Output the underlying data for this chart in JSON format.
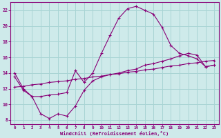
{
  "xlabel": "Windchill (Refroidissement éolien,°C)",
  "background_color": "#ceeaea",
  "grid_color": "#a8d4d4",
  "line_color": "#880077",
  "xlim": [
    -0.5,
    23.5
  ],
  "ylim": [
    7.5,
    23.0
  ],
  "xticks": [
    0,
    1,
    2,
    3,
    4,
    5,
    6,
    7,
    8,
    9,
    10,
    11,
    12,
    13,
    14,
    15,
    16,
    17,
    18,
    19,
    20,
    21,
    22,
    23
  ],
  "yticks": [
    8,
    10,
    12,
    14,
    16,
    18,
    20,
    22
  ],
  "line1_x": [
    0,
    1,
    2,
    3,
    4,
    5,
    6,
    7,
    8,
    9,
    10,
    11,
    12,
    13,
    14,
    15,
    16,
    17,
    18,
    19,
    20,
    21,
    22,
    23
  ],
  "line1_y": [
    14.0,
    12.0,
    11.0,
    11.0,
    11.2,
    11.3,
    11.5,
    14.3,
    12.8,
    14.0,
    16.5,
    18.8,
    21.0,
    22.2,
    22.5,
    22.0,
    21.5,
    19.8,
    17.5,
    16.5,
    16.2,
    15.8,
    14.8,
    15.0
  ],
  "line2_x": [
    0,
    1,
    2,
    3,
    4,
    5,
    6,
    7,
    8,
    9,
    10,
    11,
    12,
    13,
    14,
    15,
    16,
    17,
    18,
    19,
    20,
    21,
    22,
    23
  ],
  "line2_y": [
    12.2,
    12.3,
    12.5,
    12.6,
    12.8,
    12.9,
    13.0,
    13.2,
    13.3,
    13.5,
    13.6,
    13.8,
    13.9,
    14.1,
    14.2,
    14.4,
    14.5,
    14.7,
    14.9,
    15.0,
    15.2,
    15.3,
    15.5,
    15.6
  ],
  "line3_x": [
    0,
    1,
    2,
    3,
    4,
    5,
    6,
    7,
    8,
    9,
    10,
    11,
    12,
    13,
    14,
    15,
    16,
    17,
    18,
    19,
    20,
    21,
    22,
    23
  ],
  "line3_y": [
    13.5,
    11.8,
    11.0,
    8.8,
    8.2,
    8.8,
    8.5,
    9.8,
    11.8,
    13.0,
    13.5,
    13.8,
    14.0,
    14.3,
    14.5,
    15.0,
    15.2,
    15.5,
    15.8,
    16.2,
    16.5,
    16.3,
    14.8,
    15.0
  ]
}
